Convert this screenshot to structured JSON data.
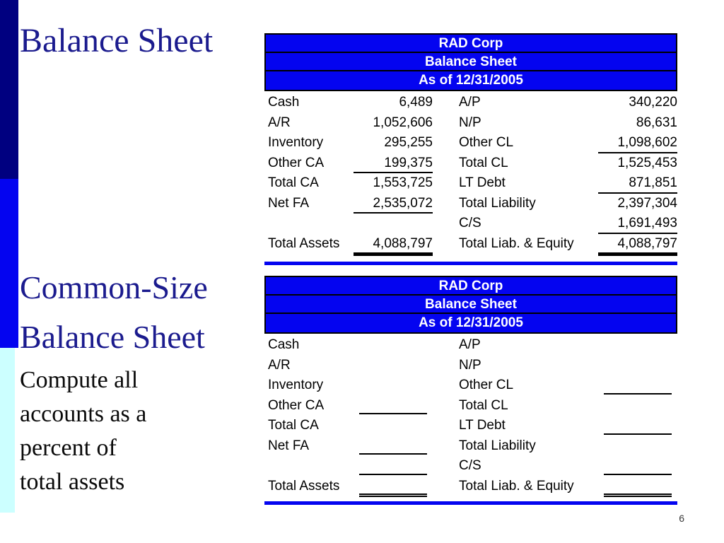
{
  "slide": {
    "title": "Balance Sheet",
    "section_title_line1": "Common-Size",
    "section_title_line2": "Balance Sheet",
    "note_lines": [
      "Compute all",
      "accounts as a",
      "percent of",
      "total assets"
    ],
    "page_number": "6"
  },
  "colors": {
    "navy_bar": "#000080",
    "bright_blue": "#0404F0",
    "cyan_bar": "#CCFFFF",
    "title_navy": "#1B1B8E",
    "header_text": "#FFFFFF"
  },
  "balance_sheet_table": {
    "header": [
      "RAD Corp",
      "Balance Sheet",
      "As of 12/31/2005"
    ],
    "rows": [
      {
        "assets_label": "Cash",
        "assets_value": "6,489",
        "assets_underline": "",
        "liab_label": "A/P",
        "liab_value": "340,220",
        "liab_underline": ""
      },
      {
        "assets_label": "A/R",
        "assets_value": "1,052,606",
        "assets_underline": "",
        "liab_label": "N/P",
        "liab_value": "86,631",
        "liab_underline": ""
      },
      {
        "assets_label": "Inventory",
        "assets_value": "295,255",
        "assets_underline": "",
        "liab_label": "Other CL",
        "liab_value": "1,098,602",
        "liab_underline": "single"
      },
      {
        "assets_label": "Other CA",
        "assets_value": "199,375",
        "assets_underline": "single",
        "liab_label": "Total CL",
        "liab_value": "1,525,453",
        "liab_underline": ""
      },
      {
        "assets_label": "Total CA",
        "assets_value": "1,553,725",
        "assets_underline": "",
        "liab_label": "LT Debt",
        "liab_value": "871,851",
        "liab_underline": "single"
      },
      {
        "assets_label": "Net FA",
        "assets_value": "2,535,072",
        "assets_underline": "single",
        "liab_label": "Total Liability",
        "liab_value": "2,397,304",
        "liab_underline": ""
      },
      {
        "assets_label": "",
        "assets_value": "",
        "assets_underline": "",
        "liab_label": "C/S",
        "liab_value": "1,691,493",
        "liab_underline": "single"
      },
      {
        "assets_label": "Total Assets",
        "assets_value": "4,088,797",
        "assets_underline": "double",
        "liab_label": "Total Liab. & Equity",
        "liab_value": "4,088,797",
        "liab_underline": "double"
      }
    ]
  },
  "common_size_table": {
    "header": [
      "RAD Corp",
      "Balance Sheet",
      "As of 12/31/2005"
    ],
    "rows": [
      {
        "assets_label": "Cash",
        "assets_value": "",
        "assets_underline": "",
        "liab_label": "A/P",
        "liab_value": "",
        "liab_underline": ""
      },
      {
        "assets_label": "A/R",
        "assets_value": "",
        "assets_underline": "",
        "liab_label": "N/P",
        "liab_value": "",
        "liab_underline": ""
      },
      {
        "assets_label": "Inventory",
        "assets_value": "",
        "assets_underline": "",
        "liab_label": "Other CL",
        "liab_value": "",
        "liab_underline": "single"
      },
      {
        "assets_label": "Other CA",
        "assets_value": "",
        "assets_underline": "single",
        "liab_label": "Total CL",
        "liab_value": "",
        "liab_underline": ""
      },
      {
        "assets_label": "Total CA",
        "assets_value": "",
        "assets_underline": "",
        "liab_label": "LT Debt",
        "liab_value": "",
        "liab_underline": "single"
      },
      {
        "assets_label": "Net FA",
        "assets_value": "",
        "assets_underline": "single",
        "liab_label": "Total Liability",
        "liab_value": "",
        "liab_underline": ""
      },
      {
        "assets_label": "",
        "assets_value": "",
        "assets_underline": "single",
        "liab_label": "C/S",
        "liab_value": "",
        "liab_underline": "single"
      },
      {
        "assets_label": "Total Assets",
        "assets_value": "",
        "assets_underline": "double",
        "liab_label": "Total Liab. & Equity",
        "liab_value": "",
        "liab_underline": "double"
      }
    ]
  }
}
